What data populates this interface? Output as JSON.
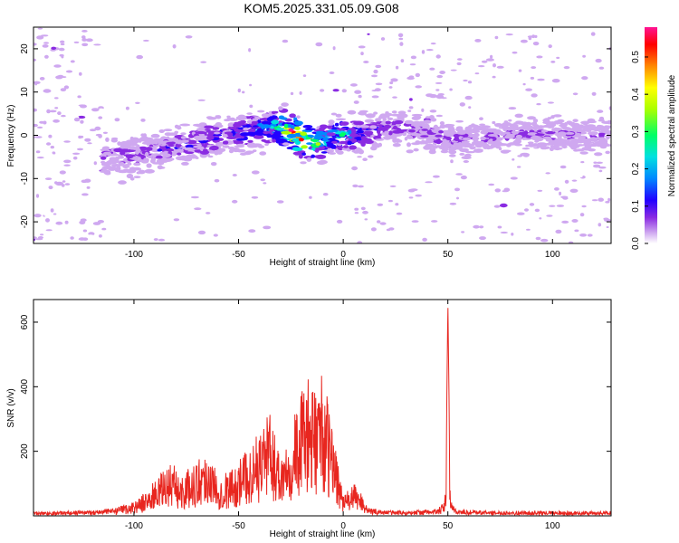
{
  "title": "KOM5.2025.331.05.09.G08",
  "chart_data": [
    {
      "type": "heatmap",
      "name": "spectrogram",
      "xlabel": "Height of straight line (km)",
      "ylabel": "Frequency (Hz)",
      "xlim": [
        -148,
        128
      ],
      "ylim": [
        -25,
        25
      ],
      "xticks": [
        "-100",
        "-50",
        "0",
        "50",
        "100"
      ],
      "xtick_values": [
        -100,
        -50,
        0,
        50,
        100
      ],
      "yticks": [
        "-20",
        "-10",
        "0",
        "10",
        "20"
      ],
      "ytick_values": [
        -20,
        -10,
        0,
        10,
        20
      ],
      "colorbar": {
        "label": "Normalized spectral amplitude",
        "range": [
          0,
          0.58
        ],
        "ticks": [
          "0.0",
          "0.1",
          "0.2",
          "0.3",
          "0.4",
          "0.5"
        ],
        "tick_values": [
          0,
          0.1,
          0.2,
          0.3,
          0.4,
          0.5
        ],
        "colors": [
          "#ffffff",
          "#cfa8f0",
          "#8a2be2",
          "#2200ff",
          "#0088ff",
          "#00e0e0",
          "#00ff66",
          "#aaff00",
          "#ffff00",
          "#ff8800",
          "#ff0000",
          "#ff1493"
        ]
      },
      "ridge": [
        {
          "x": -110,
          "f": -5,
          "amp": 0.12
        },
        {
          "x": -95,
          "f": -4,
          "amp": 0.14
        },
        {
          "x": -80,
          "f": -2.5,
          "amp": 0.15
        },
        {
          "x": -65,
          "f": -1,
          "amp": 0.18
        },
        {
          "x": -50,
          "f": 0.5,
          "amp": 0.2
        },
        {
          "x": -35,
          "f": 2,
          "amp": 0.28
        },
        {
          "x": -25,
          "f": 1.2,
          "amp": 0.58
        },
        {
          "x": -20,
          "f": -1,
          "amp": 0.52
        },
        {
          "x": -12,
          "f": -2,
          "amp": 0.35
        },
        {
          "x": -5,
          "f": -0.5,
          "amp": 0.3
        },
        {
          "x": 0,
          "f": 0.3,
          "amp": 0.34
        },
        {
          "x": 8,
          "f": 0,
          "amp": 0.2
        },
        {
          "x": 20,
          "f": 2,
          "amp": 0.14
        },
        {
          "x": 35,
          "f": 1,
          "amp": 0.12
        },
        {
          "x": 50,
          "f": -1,
          "amp": 0.13
        },
        {
          "x": 70,
          "f": 0,
          "amp": 0.12
        },
        {
          "x": 95,
          "f": 0,
          "amp": 0.12
        },
        {
          "x": 120,
          "f": 0,
          "amp": 0.12
        }
      ]
    },
    {
      "type": "line",
      "name": "snr",
      "xlabel": "Height of straight line (km)",
      "ylabel": "SNR (v/v)",
      "xlim": [
        -148,
        128
      ],
      "ylim": [
        0,
        670
      ],
      "xticks": [
        "-100",
        "-50",
        "0",
        "50",
        "100"
      ],
      "xtick_values": [
        -100,
        -50,
        0,
        50,
        100
      ],
      "yticks": [
        "200",
        "400",
        "600"
      ],
      "ytick_values": [
        200,
        400,
        600
      ],
      "color": "#e8261f",
      "series": [
        {
          "name": "SNR",
          "x": [
            -148,
            -120,
            -108,
            -100,
            -95,
            -90,
            -85,
            -82,
            -78,
            -72,
            -65,
            -60,
            -55,
            -50,
            -45,
            -40,
            -37,
            -34,
            -30,
            -25,
            -20,
            -18,
            -15,
            -12,
            -10,
            -8,
            -6,
            -4,
            -2,
            0,
            3,
            6,
            9,
            12,
            20,
            30,
            45,
            48,
            49,
            50,
            51,
            52,
            55,
            70,
            100,
            128
          ],
          "values": [
            12,
            18,
            25,
            45,
            70,
            110,
            150,
            175,
            120,
            160,
            210,
            130,
            140,
            170,
            220,
            260,
            340,
            300,
            200,
            300,
            380,
            460,
            380,
            440,
            450,
            380,
            300,
            250,
            160,
            60,
            90,
            100,
            70,
            25,
            18,
            15,
            22,
            40,
            80,
            660,
            120,
            35,
            20,
            16,
            15,
            14
          ]
        }
      ]
    }
  ]
}
